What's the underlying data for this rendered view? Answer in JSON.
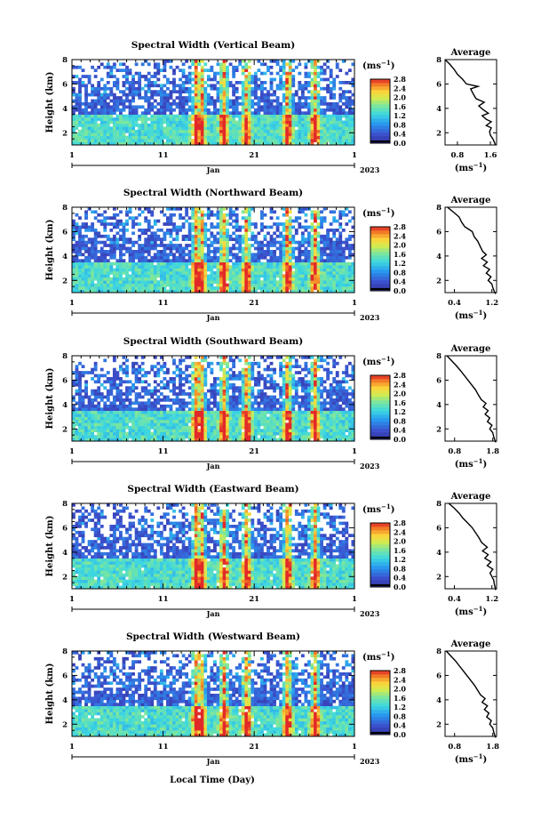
{
  "figure": {
    "bottom_xlabel": "Local Time (Day)",
    "month_label": "Jan",
    "year_label": "2023",
    "colorbar_unit": "(ms",
    "colorbar_unit_sup": "−1",
    "avg_xlabel": "(ms",
    "avg_xlabel_sup": "−1"
  },
  "chart_data": [
    {
      "type": "heatmap",
      "panel_id": "vertical",
      "title": "Spectral Width (Vertical Beam)",
      "ylabel": "Height (km)",
      "xlabel": "",
      "xlim": [
        1,
        32
      ],
      "ylim": [
        1,
        8
      ],
      "x_ticks": [
        "1",
        "11",
        "21",
        "1"
      ],
      "y_ticks": [
        2,
        4,
        6,
        8
      ],
      "colorbar": {
        "ticks": [
          "2.8",
          "2.4",
          "2.0",
          "1.6",
          "1.2",
          "0.8",
          "0.4",
          "0.0"
        ],
        "range": [
          0,
          2.8
        ]
      },
      "average": {
        "title": "Average",
        "xticks": [
          "0.8",
          "1.6"
        ],
        "xlim": [
          0.5,
          1.75
        ],
        "yticks": [
          "2",
          "4",
          "6",
          "8"
        ],
        "profile": [
          [
            8.0,
            0.5
          ],
          [
            7.6,
            0.62
          ],
          [
            7.2,
            0.72
          ],
          [
            6.8,
            0.8
          ],
          [
            6.4,
            0.92
          ],
          [
            6.0,
            1.02
          ],
          [
            5.8,
            1.3
          ],
          [
            5.6,
            1.12
          ],
          [
            5.2,
            1.18
          ],
          [
            4.8,
            1.25
          ],
          [
            4.5,
            1.45
          ],
          [
            4.2,
            1.32
          ],
          [
            3.9,
            1.42
          ],
          [
            3.6,
            1.55
          ],
          [
            3.4,
            1.4
          ],
          [
            3.1,
            1.5
          ],
          [
            2.9,
            1.62
          ],
          [
            2.6,
            1.5
          ],
          [
            2.4,
            1.62
          ],
          [
            2.1,
            1.58
          ],
          [
            1.8,
            1.6
          ],
          [
            1.5,
            1.66
          ],
          [
            1.2,
            1.7
          ],
          [
            1.0,
            1.72
          ]
        ]
      }
    },
    {
      "type": "heatmap",
      "panel_id": "northward",
      "title": "Spectral Width (Northward Beam)",
      "ylabel": "Height (km)",
      "xlabel": "",
      "xlim": [
        1,
        32
      ],
      "ylim": [
        1,
        8
      ],
      "x_ticks": [
        "1",
        "11",
        "21",
        "1"
      ],
      "y_ticks": [
        2,
        4,
        6,
        8
      ],
      "colorbar": {
        "ticks": [
          "2.8",
          "2.4",
          "2.0",
          "1.6",
          "1.2",
          "0.8",
          "0.4",
          "0.0"
        ],
        "range": [
          0,
          2.8
        ]
      },
      "average": {
        "title": "Average",
        "xticks": [
          "0.4",
          "1.2"
        ],
        "xlim": [
          0.2,
          1.3
        ],
        "yticks": [
          "2",
          "4",
          "6",
          "8"
        ],
        "profile": [
          [
            8.0,
            0.25
          ],
          [
            7.6,
            0.38
          ],
          [
            7.2,
            0.5
          ],
          [
            6.8,
            0.55
          ],
          [
            6.4,
            0.62
          ],
          [
            6.0,
            0.78
          ],
          [
            5.6,
            0.82
          ],
          [
            5.2,
            0.9
          ],
          [
            4.8,
            0.95
          ],
          [
            4.4,
            1.0
          ],
          [
            4.1,
            1.08
          ],
          [
            3.8,
            0.98
          ],
          [
            3.5,
            1.1
          ],
          [
            3.2,
            1.02
          ],
          [
            2.9,
            1.15
          ],
          [
            2.6,
            1.08
          ],
          [
            2.3,
            1.18
          ],
          [
            2.0,
            1.12
          ],
          [
            1.7,
            1.2
          ],
          [
            1.4,
            1.22
          ],
          [
            1.1,
            1.25
          ],
          [
            0.9,
            1.28
          ]
        ]
      }
    },
    {
      "type": "heatmap",
      "panel_id": "southward",
      "title": "Spectral Width (Southward Beam)",
      "ylabel": "Height (km)",
      "xlabel": "",
      "xlim": [
        1,
        32
      ],
      "ylim": [
        1,
        8
      ],
      "x_ticks": [
        "1",
        "11",
        "21",
        "1"
      ],
      "y_ticks": [
        2,
        4,
        6,
        8
      ],
      "colorbar": {
        "ticks": [
          "2.8",
          "2.4",
          "2.0",
          "1.6",
          "1.2",
          "0.8",
          "0.4",
          "0.0"
        ],
        "range": [
          0,
          2.8
        ]
      },
      "average": {
        "title": "Average",
        "xticks": [
          "0.8",
          "1.8"
        ],
        "xlim": [
          0.55,
          1.9
        ],
        "yticks": [
          "2",
          "4",
          "6",
          "8"
        ],
        "profile": [
          [
            8.0,
            0.6
          ],
          [
            7.6,
            0.72
          ],
          [
            7.2,
            0.84
          ],
          [
            6.8,
            0.95
          ],
          [
            6.4,
            1.05
          ],
          [
            6.0,
            1.15
          ],
          [
            5.6,
            1.25
          ],
          [
            5.2,
            1.35
          ],
          [
            4.8,
            1.42
          ],
          [
            4.4,
            1.5
          ],
          [
            4.1,
            1.62
          ],
          [
            3.8,
            1.55
          ],
          [
            3.5,
            1.68
          ],
          [
            3.2,
            1.6
          ],
          [
            2.9,
            1.72
          ],
          [
            2.6,
            1.66
          ],
          [
            2.3,
            1.78
          ],
          [
            2.0,
            1.72
          ],
          [
            1.7,
            1.8
          ],
          [
            1.4,
            1.82
          ],
          [
            1.1,
            1.85
          ],
          [
            0.9,
            1.88
          ]
        ]
      }
    },
    {
      "type": "heatmap",
      "panel_id": "eastward",
      "title": "Spectral Width (Eastward Beam)",
      "ylabel": "Height (km)",
      "xlabel": "",
      "xlim": [
        1,
        32
      ],
      "ylim": [
        1,
        8
      ],
      "x_ticks": [
        "1",
        "11",
        "21",
        "1"
      ],
      "y_ticks": [
        2,
        4,
        6,
        8
      ],
      "colorbar": {
        "ticks": [
          "2.8",
          "2.4",
          "2.0",
          "1.6",
          "1.2",
          "0.8",
          "0.4",
          "0.0"
        ],
        "range": [
          0,
          2.8
        ]
      },
      "average": {
        "title": "Average",
        "xticks": [
          "0.4",
          "1.2"
        ],
        "xlim": [
          0.2,
          1.3
        ],
        "yticks": [
          "2",
          "4",
          "6",
          "8"
        ],
        "profile": [
          [
            8.0,
            0.28
          ],
          [
            7.6,
            0.4
          ],
          [
            7.2,
            0.5
          ],
          [
            6.8,
            0.58
          ],
          [
            6.4,
            0.68
          ],
          [
            6.0,
            0.78
          ],
          [
            5.6,
            0.85
          ],
          [
            5.2,
            0.92
          ],
          [
            4.8,
            0.98
          ],
          [
            4.4,
            1.1
          ],
          [
            4.1,
            1.0
          ],
          [
            3.8,
            1.12
          ],
          [
            3.5,
            1.05
          ],
          [
            3.2,
            1.18
          ],
          [
            2.9,
            1.1
          ],
          [
            2.6,
            1.22
          ],
          [
            2.3,
            1.16
          ],
          [
            2.0,
            1.2
          ],
          [
            1.7,
            1.24
          ],
          [
            1.4,
            1.25
          ],
          [
            1.1,
            1.27
          ],
          [
            0.9,
            1.28
          ]
        ]
      }
    },
    {
      "type": "heatmap",
      "panel_id": "westward",
      "title": "Spectral Width (Westward Beam)",
      "ylabel": "Height (km)",
      "xlabel": "",
      "xlim": [
        1,
        32
      ],
      "ylim": [
        1,
        8
      ],
      "x_ticks": [
        "1",
        "11",
        "21",
        "1"
      ],
      "y_ticks": [
        2,
        4,
        6,
        8
      ],
      "colorbar": {
        "ticks": [
          "2.8",
          "2.4",
          "2.0",
          "1.6",
          "1.2",
          "0.8",
          "0.4",
          "0.0"
        ],
        "range": [
          0,
          2.8
        ]
      },
      "average": {
        "title": "Average",
        "xticks": [
          "0.8",
          "1.8"
        ],
        "xlim": [
          0.55,
          1.9
        ],
        "yticks": [
          "2",
          "4",
          "6",
          "8"
        ],
        "profile": [
          [
            8.0,
            0.58
          ],
          [
            7.6,
            0.7
          ],
          [
            7.2,
            0.82
          ],
          [
            6.8,
            0.92
          ],
          [
            6.4,
            1.02
          ],
          [
            6.0,
            1.12
          ],
          [
            5.6,
            1.22
          ],
          [
            5.2,
            1.32
          ],
          [
            4.8,
            1.4
          ],
          [
            4.4,
            1.48
          ],
          [
            4.1,
            1.6
          ],
          [
            3.8,
            1.52
          ],
          [
            3.5,
            1.66
          ],
          [
            3.2,
            1.58
          ],
          [
            2.9,
            1.7
          ],
          [
            2.6,
            1.64
          ],
          [
            2.3,
            1.76
          ],
          [
            2.0,
            1.72
          ],
          [
            1.7,
            1.8
          ],
          [
            1.4,
            1.82
          ],
          [
            1.1,
            1.85
          ],
          [
            0.9,
            1.88
          ]
        ]
      }
    }
  ]
}
